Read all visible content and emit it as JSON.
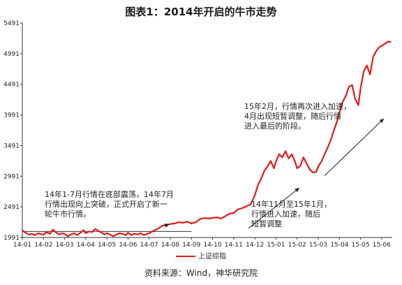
{
  "title": "图表1：2014年开启的牛市走势",
  "source": "资料来源：Wind，神华研究院",
  "colors": {
    "series": "#e11a1a",
    "arrow": "#222222"
  },
  "chart_data": {
    "type": "line",
    "title": "图表1：2014年开启的牛市走势",
    "xlabel": "",
    "ylabel": "",
    "ylim": [
      1991,
      5491
    ],
    "yticks": [
      1991,
      2491,
      2991,
      3491,
      3991,
      4491,
      4991,
      5491
    ],
    "xticks": [
      "14-01",
      "14-02",
      "14-03",
      "14-04",
      "14-05",
      "14-06",
      "14-07",
      "14-08",
      "14-09",
      "14-10",
      "14-11",
      "14-12",
      "15-01",
      "15-02",
      "15-03",
      "15-04",
      "15-05",
      "15-06"
    ],
    "grid": false,
    "legend": "bottom-center",
    "series": [
      {
        "name": "上证综指",
        "x": [
          0.0,
          0.15,
          0.3,
          0.45,
          0.6,
          0.75,
          0.9,
          1.0,
          1.15,
          1.3,
          1.45,
          1.6,
          1.75,
          1.9,
          2.0,
          2.15,
          2.3,
          2.45,
          2.6,
          2.75,
          2.9,
          3.0,
          3.15,
          3.3,
          3.45,
          3.6,
          3.75,
          3.9,
          4.0,
          4.15,
          4.3,
          4.45,
          4.6,
          4.75,
          4.9,
          5.0,
          5.15,
          5.3,
          5.45,
          5.6,
          5.75,
          5.9,
          6.0,
          6.2,
          6.4,
          6.6,
          6.8,
          7.0,
          7.2,
          7.4,
          7.6,
          7.8,
          8.0,
          8.2,
          8.4,
          8.6,
          8.8,
          9.0,
          9.2,
          9.4,
          9.6,
          9.8,
          10.0,
          10.2,
          10.4,
          10.6,
          10.8,
          11.0,
          11.15,
          11.3,
          11.45,
          11.6,
          11.75,
          11.9,
          12.0,
          12.15,
          12.3,
          12.45,
          12.6,
          12.75,
          12.9,
          13.0,
          13.15,
          13.3,
          13.45,
          13.6,
          13.75,
          13.9,
          14.0,
          14.15,
          14.3,
          14.45,
          14.6,
          14.75,
          14.9,
          15.0,
          15.15,
          15.3,
          15.45,
          15.6,
          15.75,
          15.9,
          16.0,
          16.15,
          16.3,
          16.45,
          16.6,
          16.75,
          16.9,
          17.0,
          17.15,
          17.3,
          17.45
        ],
        "values": [
          2110,
          2070,
          2040,
          2050,
          2030,
          2060,
          2045,
          2035,
          2080,
          2050,
          2120,
          2070,
          2040,
          2060,
          2050,
          2010,
          2040,
          2060,
          2030,
          2070,
          2110,
          2060,
          2090,
          2080,
          2130,
          2100,
          2070,
          2040,
          2060,
          2040,
          2010,
          2040,
          2060,
          2050,
          2030,
          2070,
          2030,
          2050,
          2040,
          2060,
          2030,
          2050,
          2060,
          2100,
          2130,
          2180,
          2200,
          2210,
          2220,
          2240,
          2230,
          2250,
          2220,
          2240,
          2290,
          2310,
          2300,
          2310,
          2320,
          2300,
          2340,
          2380,
          2390,
          2450,
          2470,
          2500,
          2530,
          2680,
          2850,
          2950,
          3080,
          3150,
          3240,
          3120,
          3230,
          3350,
          3300,
          3400,
          3280,
          3350,
          3230,
          3120,
          3160,
          3300,
          3200,
          3100,
          3050,
          3060,
          3150,
          3230,
          3350,
          3460,
          3590,
          3750,
          3900,
          4030,
          4200,
          4300,
          4450,
          4480,
          4250,
          4150,
          4420,
          4700,
          4800,
          4650,
          4940,
          5040,
          5100,
          5120,
          5150,
          5190,
          5180
        ]
      }
    ],
    "annotations": [
      {
        "id": "a1",
        "text": "14年1-7月行情在底部震荡，14年7月\n行情出现向上突破，正式开启了新一\n轮牛市行情。"
      },
      {
        "id": "a2",
        "text": "14年11月至15年1月，\n行情进入加速，随后\n短暂调整"
      },
      {
        "id": "a3",
        "text": "15年2月，行情再次进入加速，\n4月出现短暂调整，随后行情\n进入最后的阶段。"
      }
    ],
    "reference_line": {
      "y": 2090,
      "x_start": 0.0,
      "x_end": 8.0
    }
  }
}
